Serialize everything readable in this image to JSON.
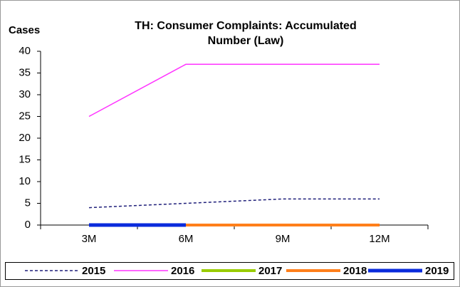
{
  "chart_data": {
    "type": "line",
    "title": "TH: Consumer Complaints: Accumulated Number (Law)",
    "y_label": "Cases",
    "categories": [
      "3M",
      "6M",
      "9M",
      "12M"
    ],
    "series": [
      {
        "name": "2015",
        "color": "#1f1f7a",
        "line_style": "dashed",
        "width": 1.5,
        "values": [
          4,
          5,
          6,
          6
        ]
      },
      {
        "name": "2016",
        "color": "#ff33ff",
        "line_style": "solid",
        "width": 1.5,
        "values": [
          25,
          37,
          37,
          37
        ]
      },
      {
        "name": "2017",
        "color": "#99cc00",
        "line_style": "solid",
        "width": 4,
        "values": [
          0,
          0,
          0,
          0
        ]
      },
      {
        "name": "2018",
        "color": "#ff7f1a",
        "line_style": "solid",
        "width": 4,
        "values": [
          0,
          0,
          0,
          0
        ]
      },
      {
        "name": "2019",
        "color": "#0a2bdc",
        "line_style": "solid",
        "width": 5,
        "values": [
          0,
          0,
          null,
          null
        ]
      }
    ],
    "ylim": [
      0,
      40
    ],
    "yticks": [
      0,
      5,
      10,
      15,
      20,
      25,
      30,
      35,
      40
    ],
    "grid": false,
    "legend": "bottom"
  }
}
